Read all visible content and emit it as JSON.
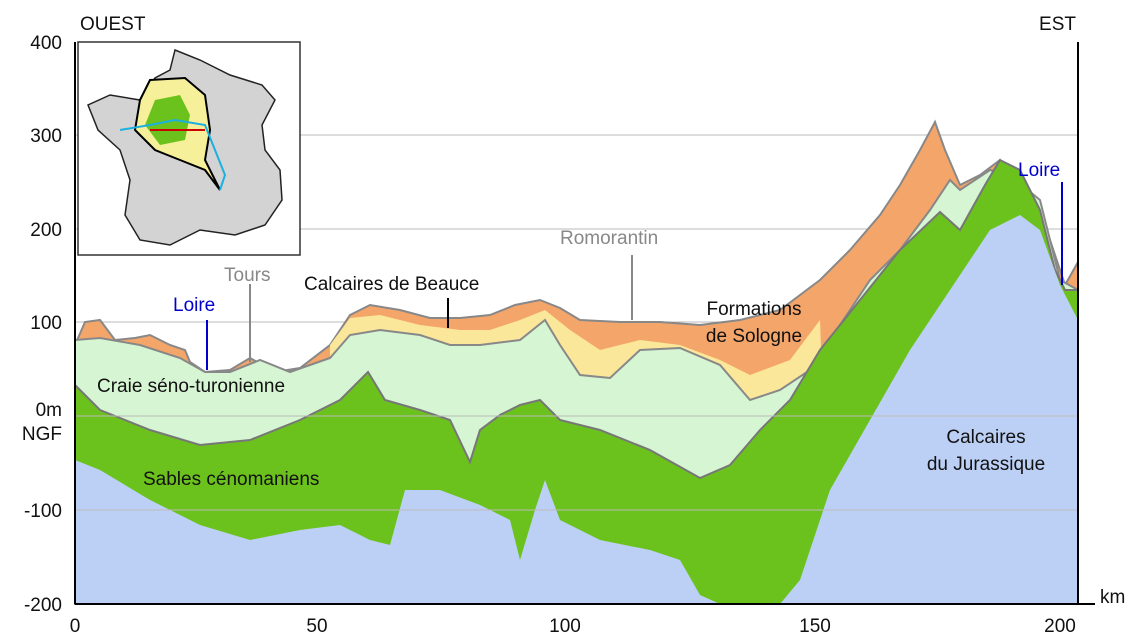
{
  "header": {
    "west": "OUEST",
    "east": "EST"
  },
  "y_axis": {
    "ticks": [
      "400",
      "300",
      "200",
      "100",
      "0m",
      "-100",
      "-200"
    ],
    "datum": "NGF"
  },
  "x_axis": {
    "ticks": [
      "0",
      "50",
      "100",
      "150",
      "200"
    ],
    "unit": "km"
  },
  "places": {
    "loire_west": "Loire",
    "tours": "Tours",
    "romorantin": "Romorantin",
    "loire_east": "Loire"
  },
  "layers": {
    "beauce": "Calcaires de Beauce",
    "sologne": [
      "Formations",
      "de Sologne"
    ],
    "craie": "Craie séno-turonienne",
    "sables": "Sables cénomaniens",
    "jurassique": [
      "Calcaires",
      "du Jurassique"
    ]
  }
}
